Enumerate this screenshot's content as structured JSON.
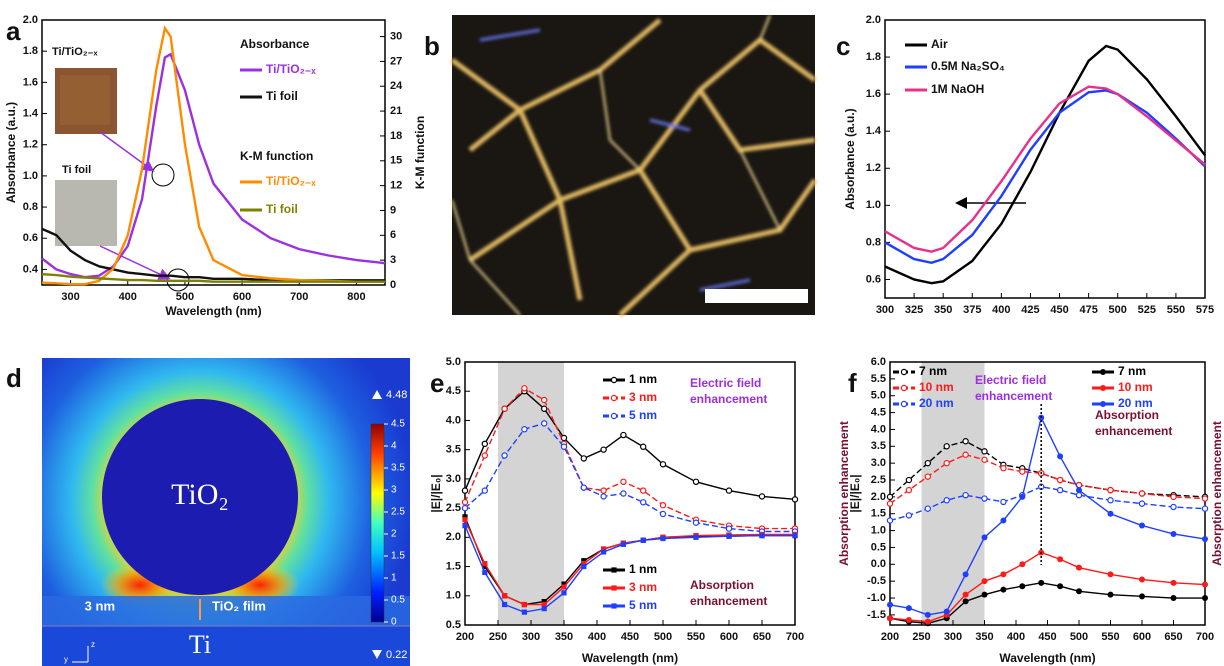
{
  "panel_labels": [
    "a",
    "b",
    "c",
    "d",
    "e",
    "f"
  ],
  "chart_data": [
    {
      "type": "line",
      "xlabel": "Wavelength (nm)",
      "ylabel": "Absorbance (a.u.)",
      "y2label": "K-M function",
      "x": [
        250,
        275,
        300,
        325,
        350,
        375,
        400,
        425,
        450,
        465,
        475,
        500,
        525,
        550,
        600,
        650,
        700,
        750,
        800,
        850
      ],
      "xlim": [
        250,
        850
      ],
      "xticks": [
        300,
        400,
        500,
        600,
        700,
        800
      ],
      "ylim": [
        0.3,
        2.0
      ],
      "yticks": [
        0.4,
        0.6,
        0.8,
        {
          "value": 1,
          "label": "1.0"
        },
        1.2,
        1.4,
        1.6,
        1.8,
        {
          "value": 2,
          "label": "2.0"
        }
      ],
      "y2lim": [
        0,
        32
      ],
      "y2ticks": [
        0,
        3,
        6,
        9,
        12,
        15,
        18,
        21,
        24,
        27,
        30
      ],
      "legend_headings": [
        "Absorbance",
        "K-M function"
      ],
      "legend_colored": true,
      "inset_labels": [
        "Ti/TiO₂₋ₓ",
        "Ti foil"
      ],
      "series": [
        {
          "name": "Ti/TiO₂₋ₓ",
          "color": "#9b30e0",
          "values": [
            0.47,
            0.4,
            0.37,
            0.35,
            0.36,
            0.42,
            0.55,
            0.85,
            1.45,
            1.76,
            1.78,
            1.55,
            1.2,
            0.95,
            0.72,
            0.6,
            0.53,
            0.49,
            0.46,
            0.44
          ]
        },
        {
          "name": "Ti foil",
          "color": "#111111",
          "values": [
            0.66,
            0.62,
            0.52,
            0.46,
            0.42,
            0.4,
            0.38,
            0.37,
            0.36,
            0.36,
            0.36,
            0.35,
            0.35,
            0.34,
            0.34,
            0.33,
            0.33,
            0.33,
            0.33,
            0.33
          ]
        },
        {
          "name": "Ti/TiO₂₋ₓ",
          "color": "#ff8c00",
          "axis": "y2",
          "values": [
            0.3,
            0.2,
            0.1,
            0.1,
            0.5,
            2,
            6,
            14,
            26,
            31,
            30,
            17,
            7,
            3,
            1.2,
            0.8,
            0.6,
            0.5,
            0.4,
            0.4
          ]
        },
        {
          "name": "Ti foil",
          "color": "#808000",
          "axis": "y2",
          "values": [
            1.3,
            1.2,
            1.0,
            0.9,
            0.8,
            0.7,
            0.6,
            0.6,
            0.5,
            0.5,
            0.5,
            0.5,
            0.5,
            0.4,
            0.4,
            0.4,
            0.4,
            0.4,
            0.4,
            0.4
          ]
        }
      ]
    },
    {
      "type": "line",
      "ylabel": "Absorbance (a.u.)",
      "x": [
        300,
        325,
        340,
        350,
        375,
        400,
        425,
        450,
        475,
        490,
        500,
        525,
        550,
        575
      ],
      "xlim": [
        300,
        575
      ],
      "xticks": [
        300,
        325,
        350,
        375,
        400,
        425,
        450,
        475,
        500,
        525,
        550,
        575
      ],
      "ylim": [
        0.5,
        2.0
      ],
      "yticks": [
        0.6,
        0.8,
        {
          "value": 1,
          "label": "1.0"
        },
        1.2,
        1.4,
        1.6,
        1.8,
        {
          "value": 2,
          "label": "2.0"
        }
      ],
      "legend_colored": false,
      "series": [
        {
          "name": "Air",
          "color": "#000000",
          "values": [
            0.67,
            0.6,
            0.58,
            0.59,
            0.7,
            0.9,
            1.18,
            1.5,
            1.78,
            1.86,
            1.84,
            1.68,
            1.48,
            1.27
          ]
        },
        {
          "name": "0.5M Na₂SO₄",
          "color": "#1f3fff",
          "values": [
            0.8,
            0.71,
            0.69,
            0.71,
            0.84,
            1.05,
            1.3,
            1.5,
            1.61,
            1.62,
            1.6,
            1.5,
            1.36,
            1.21
          ]
        },
        {
          "name": "1M NaOH",
          "color": "#e8308a",
          "values": [
            0.86,
            0.77,
            0.75,
            0.77,
            0.92,
            1.13,
            1.36,
            1.55,
            1.64,
            1.63,
            1.6,
            1.48,
            1.35,
            1.22
          ]
        }
      ]
    },
    {
      "type": "line",
      "xlabel": "Wavelength (nm)",
      "ylabel": "|E|/|E₀|",
      "y2label": "Absorption enhancement",
      "x": [
        200,
        230,
        260,
        290,
        320,
        350,
        380,
        410,
        440,
        470,
        500,
        550,
        600,
        650,
        700
      ],
      "xlim": [
        200,
        700
      ],
      "xticks": [
        200,
        250,
        300,
        350,
        400,
        450,
        500,
        550,
        600,
        650,
        700
      ],
      "ylim": [
        0.5,
        5.0
      ],
      "yticks": [
        0.5,
        {
          "value": 1,
          "label": "1.0"
        },
        1.5,
        {
          "value": 2,
          "label": "2.0"
        },
        2.5,
        {
          "value": 3,
          "label": "3.0"
        },
        3.5,
        {
          "value": 4,
          "label": "4.0"
        },
        4.5,
        {
          "value": 5,
          "label": "5.0"
        }
      ],
      "shade": [
        250,
        350
      ],
      "legend_colored": true,
      "annotations": [
        {
          "lines": [
            "Electric field",
            "enhancement"
          ],
          "color": "#9b30e0"
        },
        {
          "lines": [
            "Absorption",
            "enhancement"
          ],
          "color": "#7a1030"
        }
      ],
      "series": [
        {
          "name": "1 nm",
          "color": "#000000",
          "marker": "open-circle",
          "values": [
            2.8,
            3.6,
            4.2,
            4.5,
            4.2,
            3.7,
            3.35,
            3.5,
            3.75,
            3.55,
            3.25,
            2.95,
            2.8,
            2.7,
            2.65
          ]
        },
        {
          "name": "3 nm",
          "color": "#ff1a1a",
          "marker": "open-circle",
          "dash": true,
          "values": [
            2.6,
            3.4,
            4.2,
            4.55,
            4.35,
            3.6,
            2.85,
            2.8,
            2.95,
            2.8,
            2.55,
            2.3,
            2.2,
            2.15,
            2.15
          ]
        },
        {
          "name": "5 nm",
          "color": "#1f3fff",
          "marker": "open-circle",
          "dash": true,
          "values": [
            2.5,
            2.8,
            3.4,
            3.85,
            3.95,
            3.55,
            2.85,
            2.7,
            2.75,
            2.6,
            2.4,
            2.25,
            2.15,
            2.1,
            2.1
          ]
        },
        {
          "name": "1 nm",
          "color": "#000000",
          "marker": "filled-square",
          "values": [
            2.35,
            1.5,
            1.0,
            0.85,
            0.9,
            1.2,
            1.6,
            1.8,
            1.9,
            1.95,
            2.0,
            2.02,
            2.02,
            2.03,
            2.03
          ]
        },
        {
          "name": "3 nm",
          "color": "#ff1a1a",
          "marker": "filled-square",
          "values": [
            2.3,
            1.55,
            1.0,
            0.85,
            0.85,
            1.15,
            1.55,
            1.8,
            1.9,
            1.95,
            2.0,
            2.03,
            2.04,
            2.05,
            2.05
          ]
        },
        {
          "name": "5 nm",
          "color": "#1f3fff",
          "marker": "filled-square",
          "values": [
            2.2,
            1.4,
            0.85,
            0.72,
            0.78,
            1.05,
            1.5,
            1.75,
            1.88,
            1.95,
            1.98,
            2.0,
            2.02,
            2.03,
            2.03
          ]
        }
      ]
    },
    {
      "type": "line",
      "xlabel": "Wavelength (nm)",
      "ylabel": "|E|/|E₀|",
      "y2label": "Absorption enhancement",
      "x": [
        200,
        230,
        260,
        290,
        320,
        350,
        380,
        410,
        440,
        470,
        500,
        550,
        600,
        650,
        700
      ],
      "xlim": [
        200,
        700
      ],
      "xticks": [
        200,
        250,
        300,
        350,
        400,
        450,
        500,
        550,
        600,
        650,
        700
      ],
      "ylim": [
        -1.8,
        6.0
      ],
      "yticks": [
        -1.5,
        {
          "value": -1,
          "label": "-1.0"
        },
        -0.5,
        {
          "value": 0,
          "label": "0.0"
        },
        0.5,
        {
          "value": 1,
          "label": "1.0"
        },
        1.5,
        {
          "value": 2,
          "label": "2.0"
        },
        2.5,
        {
          "value": 3,
          "label": "3.0"
        },
        3.5,
        {
          "value": 4,
          "label": "4.0"
        },
        4.5,
        {
          "value": 5,
          "label": "5.0"
        },
        5.5,
        {
          "value": 6,
          "label": "6.0"
        }
      ],
      "shade": [
        250,
        350
      ],
      "guide_x": 440,
      "legend_colored": true,
      "annotations": [
        {
          "lines": [
            "Electric field",
            "enhancement"
          ],
          "color": "#9b30e0"
        },
        {
          "lines": [
            "Absorption",
            "enhancement"
          ],
          "color": "#7a1030"
        }
      ],
      "series": [
        {
          "name": "7 nm",
          "color": "#000000",
          "marker": "open-circle",
          "dash": true,
          "values": [
            2.0,
            2.5,
            3.0,
            3.5,
            3.65,
            3.35,
            2.95,
            2.85,
            2.7,
            2.5,
            2.35,
            2.2,
            2.1,
            2.05,
            2.0
          ]
        },
        {
          "name": "10 nm",
          "color": "#ff1a1a",
          "marker": "open-circle",
          "dash": true,
          "values": [
            1.8,
            2.2,
            2.6,
            3.0,
            3.25,
            3.1,
            2.85,
            2.75,
            2.7,
            2.5,
            2.35,
            2.2,
            2.1,
            2.0,
            1.95
          ]
        },
        {
          "name": "20 nm",
          "color": "#1f3fff",
          "marker": "open-circle",
          "dash": true,
          "values": [
            1.3,
            1.45,
            1.65,
            1.9,
            2.05,
            1.95,
            1.85,
            2.05,
            2.3,
            2.2,
            2.05,
            1.9,
            1.8,
            1.7,
            1.65
          ]
        },
        {
          "name": "7 nm",
          "color": "#000000",
          "marker": "filled-circle",
          "values": [
            -1.6,
            -1.7,
            -1.75,
            -1.6,
            -1.1,
            -0.9,
            -0.75,
            -0.65,
            -0.55,
            -0.65,
            -0.8,
            -0.9,
            -0.95,
            -1.0,
            -1.0
          ]
        },
        {
          "name": "10 nm",
          "color": "#ff1a1a",
          "marker": "filled-circle",
          "values": [
            -1.6,
            -1.65,
            -1.7,
            -1.5,
            -0.9,
            -0.5,
            -0.3,
            0.0,
            0.35,
            0.15,
            -0.1,
            -0.3,
            -0.45,
            -0.55,
            -0.6
          ]
        },
        {
          "name": "20 nm",
          "color": "#1f3fff",
          "marker": "filled-circle",
          "values": [
            -1.2,
            -1.3,
            -1.5,
            -1.4,
            -0.3,
            0.8,
            1.3,
            2.0,
            4.35,
            3.2,
            2.2,
            1.5,
            1.15,
            0.9,
            0.75
          ]
        }
      ]
    }
  ],
  "field_map": {
    "labels": [
      "TiO₂",
      "3 nm",
      "TiO₂ film",
      "Ti",
      "z",
      "y"
    ],
    "max": 4.48,
    "min": 0.22,
    "colorbar_ticks": [
      0,
      0.5,
      1,
      1.5,
      2,
      2.5,
      3,
      3.5,
      4,
      4.5
    ]
  }
}
